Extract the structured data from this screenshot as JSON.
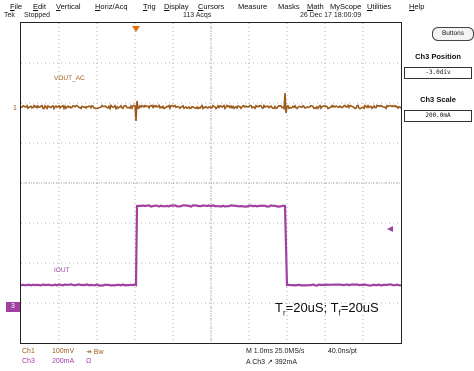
{
  "menu": {
    "items": [
      {
        "acc": "F",
        "rest": "ile"
      },
      {
        "acc": "E",
        "rest": "dit"
      },
      {
        "acc": "V",
        "rest": "ertical"
      },
      {
        "acc": "H",
        "rest": "oriz/Acq"
      },
      {
        "acc": "T",
        "rest": "rig"
      },
      {
        "acc": "D",
        "rest": "isplay"
      },
      {
        "acc": "C",
        "rest": "ursors"
      },
      {
        "acc": "",
        "rest": "Measure"
      },
      {
        "acc": "",
        "rest": "Masks"
      },
      {
        "acc": "M",
        "rest": "ath"
      },
      {
        "acc": "",
        "rest": "MyScope"
      },
      {
        "acc": "U",
        "rest": "tilities"
      },
      {
        "acc": "H",
        "rest": "elp"
      }
    ]
  },
  "status": {
    "brand": "Tek",
    "state": "Stopped",
    "acqs": "113 Acqs",
    "datetime": "26 Dec 17 18:00:09"
  },
  "side": {
    "buttons_label": "Buttons",
    "position_title": "Ch3 Position",
    "position_value": "-3.0div",
    "scale_title": "Ch3 Scale",
    "scale_value": "200.0mA"
  },
  "traces": {
    "vout_label": "VOUT_AC",
    "iout_label": "IOUT",
    "ch1_marker": "1",
    "ch3_marker": "3",
    "vout_color": "#9c5b1c",
    "iout_color": "#a040a0",
    "trigger_color": "#e07010"
  },
  "note": {
    "t1": "T",
    "s1": "r",
    "t2": "=20uS; T",
    "s2": "f",
    "t3": "=20uS"
  },
  "readout": {
    "ch1_name": "Ch1",
    "ch1_scale": "100mV",
    "ch1_bw": "↠ Bw",
    "ch3_name": "Ch3",
    "ch3_scale": "200mA",
    "ch3_coupling": "Ω",
    "timebase": "M 1.0ms 25.0MS/s",
    "resolution": "40.0ns/pt",
    "trigger": "A  Ch3  ↗  392mA"
  }
}
